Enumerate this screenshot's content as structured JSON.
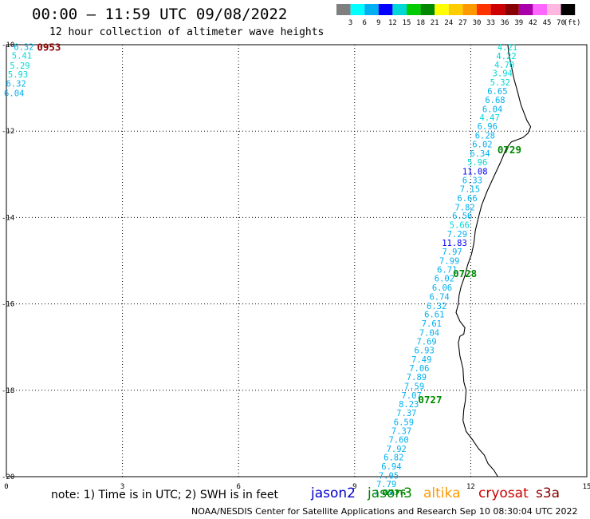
{
  "title": "00:00 – 11:59 UTC 09/08/2022",
  "subtitle": "12 hour collection of altimeter wave heights",
  "note": "note: 1) Time is in UTC; 2) SWH is in feet",
  "credit": "NOAA/NESDIS Center for Satellite Applications and Research   Sep 10 08:30:04 UTC 2022",
  "satellites": [
    {
      "name": "jason2",
      "color": "#0000cc"
    },
    {
      "name": "jason3",
      "color": "#008800"
    },
    {
      "name": "altika",
      "color": "#ff9900"
    },
    {
      "name": "cryosat",
      "color": "#cc0000"
    },
    {
      "name": "s3a",
      "color": "#8b0000"
    }
  ],
  "legend": {
    "labels": [
      "3",
      "6",
      "9",
      "12",
      "15",
      "18",
      "21",
      "24",
      "27",
      "30",
      "33",
      "36",
      "39",
      "42",
      "45",
      "70"
    ],
    "unit": "(ft)",
    "colors": [
      "#7f7f7f",
      "#00ffff",
      "#00b0f0",
      "#0000ff",
      "#00d8d8",
      "#00cc00",
      "#008800",
      "#ffff00",
      "#ffcc00",
      "#ff9900",
      "#ff3300",
      "#cc0000",
      "#880000",
      "#aa00aa",
      "#ff66ff",
      "#ffb6e0",
      "#000000"
    ]
  },
  "chart_data": {
    "type": "scatter",
    "xlim": [
      0,
      15
    ],
    "ylim": [
      -20,
      -10
    ],
    "x_ticks": [
      0,
      3,
      6,
      9,
      12,
      15
    ],
    "y_ticks": [
      -10,
      -12,
      -14,
      -16,
      -18,
      -20
    ],
    "x_tick_labels": [
      "0",
      "3",
      "6",
      "9",
      "12",
      "15"
    ],
    "y_tick_labels": [
      "-10",
      "-12",
      "-14",
      "-16",
      "-18",
      "-20"
    ],
    "grid": true,
    "series": [
      {
        "track": "west_partial",
        "points": [
          {
            "x": 0.45,
            "y": -10.05,
            "v": "6.32",
            "color": "#00b0f0"
          },
          {
            "x": 0.4,
            "y": -10.25,
            "v": "5.41",
            "color": "#00d8d8"
          },
          {
            "x": 0.35,
            "y": -10.48,
            "v": "5.29",
            "color": "#00d8d8"
          },
          {
            "x": 0.3,
            "y": -10.68,
            "v": "5.93",
            "color": "#00d8d8"
          },
          {
            "x": 0.25,
            "y": -10.9,
            "v": "6.32",
            "color": "#00b0f0"
          },
          {
            "x": 0.2,
            "y": -11.12,
            "v": "6.04",
            "color": "#00b0f0"
          }
        ]
      },
      {
        "track": "main",
        "points": [
          {
            "x": 12.95,
            "y": -10.06,
            "v": "4.21",
            "color": "#00d8d8"
          },
          {
            "x": 12.92,
            "y": -10.26,
            "v": "4.22",
            "color": "#00d8d8"
          },
          {
            "x": 12.87,
            "y": -10.46,
            "v": "4.70",
            "color": "#00d8d8"
          },
          {
            "x": 12.82,
            "y": -10.66,
            "v": "3.94",
            "color": "#00d8d8"
          },
          {
            "x": 12.76,
            "y": -10.87,
            "v": "5.32",
            "color": "#00d8d8"
          },
          {
            "x": 12.69,
            "y": -11.07,
            "v": "6.65",
            "color": "#00b0f0"
          },
          {
            "x": 12.63,
            "y": -11.28,
            "v": "6.68",
            "color": "#00b0f0"
          },
          {
            "x": 12.56,
            "y": -11.49,
            "v": "6.04",
            "color": "#00b0f0"
          },
          {
            "x": 12.49,
            "y": -11.68,
            "v": "4.47",
            "color": "#00d8d8"
          },
          {
            "x": 12.43,
            "y": -11.89,
            "v": "6.96",
            "color": "#00b0f0"
          },
          {
            "x": 12.37,
            "y": -12.1,
            "v": "6.28",
            "color": "#00b0f0"
          },
          {
            "x": 12.3,
            "y": -12.3,
            "v": "6.02",
            "color": "#00b0f0"
          },
          {
            "x": 12.24,
            "y": -12.51,
            "v": "6.34",
            "color": "#00b0f0"
          },
          {
            "x": 12.17,
            "y": -12.72,
            "v": "5.96",
            "color": "#00d8d8"
          },
          {
            "x": 12.11,
            "y": -12.93,
            "v": "11.08",
            "color": "#0000ff"
          },
          {
            "x": 12.04,
            "y": -13.13,
            "v": "6.33",
            "color": "#00b0f0"
          },
          {
            "x": 11.98,
            "y": -13.34,
            "v": "7.15",
            "color": "#00b0f0"
          },
          {
            "x": 11.91,
            "y": -13.55,
            "v": "6.66",
            "color": "#00b0f0"
          },
          {
            "x": 11.85,
            "y": -13.76,
            "v": "7.82",
            "color": "#00b0f0"
          },
          {
            "x": 11.78,
            "y": -13.96,
            "v": "6.56",
            "color": "#00b0f0"
          },
          {
            "x": 11.71,
            "y": -14.17,
            "v": "5.66",
            "color": "#00d8d8"
          },
          {
            "x": 11.65,
            "y": -14.38,
            "v": "7.29",
            "color": "#00b0f0"
          },
          {
            "x": 11.58,
            "y": -14.58,
            "v": "11.83",
            "color": "#0000ff"
          },
          {
            "x": 11.52,
            "y": -14.79,
            "v": "7.97",
            "color": "#00b0f0"
          },
          {
            "x": 11.45,
            "y": -15.0,
            "v": "7.99",
            "color": "#00b0f0"
          },
          {
            "x": 11.39,
            "y": -15.2,
            "v": "6.71",
            "color": "#00b0f0"
          },
          {
            "x": 11.32,
            "y": -15.41,
            "v": "6.02",
            "color": "#00b0f0"
          },
          {
            "x": 11.26,
            "y": -15.62,
            "v": "6.06",
            "color": "#00b0f0"
          },
          {
            "x": 11.19,
            "y": -15.83,
            "v": "6.74",
            "color": "#00b0f0"
          },
          {
            "x": 11.12,
            "y": -16.04,
            "v": "6.32",
            "color": "#00b0f0"
          },
          {
            "x": 11.06,
            "y": -16.24,
            "v": "6.61",
            "color": "#00b0f0"
          },
          {
            "x": 10.99,
            "y": -16.45,
            "v": "7.61",
            "color": "#00b0f0"
          },
          {
            "x": 10.93,
            "y": -16.66,
            "v": "7.04",
            "color": "#00b0f0"
          },
          {
            "x": 10.86,
            "y": -16.87,
            "v": "7.69",
            "color": "#00b0f0"
          },
          {
            "x": 10.8,
            "y": -17.07,
            "v": "6.93",
            "color": "#00b0f0"
          },
          {
            "x": 10.73,
            "y": -17.28,
            "v": "7.49",
            "color": "#00b0f0"
          },
          {
            "x": 10.67,
            "y": -17.49,
            "v": "7.06",
            "color": "#00b0f0"
          },
          {
            "x": 10.6,
            "y": -17.69,
            "v": "7.89",
            "color": "#00b0f0"
          },
          {
            "x": 10.54,
            "y": -17.9,
            "v": "7.59",
            "color": "#00b0f0"
          },
          {
            "x": 10.47,
            "y": -18.11,
            "v": "7.07",
            "color": "#00b0f0"
          },
          {
            "x": 10.4,
            "y": -18.32,
            "v": "8.23",
            "color": "#00b0f0"
          },
          {
            "x": 10.34,
            "y": -18.52,
            "v": "7.37",
            "color": "#00b0f0"
          },
          {
            "x": 10.27,
            "y": -18.73,
            "v": "6.59",
            "color": "#00b0f0"
          },
          {
            "x": 10.21,
            "y": -18.94,
            "v": "7.37",
            "color": "#00b0f0"
          },
          {
            "x": 10.14,
            "y": -19.14,
            "v": "7.60",
            "color": "#00b0f0"
          },
          {
            "x": 10.08,
            "y": -19.35,
            "v": "7.92",
            "color": "#00b0f0"
          },
          {
            "x": 10.01,
            "y": -19.55,
            "v": "6.82",
            "color": "#00b0f0"
          },
          {
            "x": 9.95,
            "y": -19.76,
            "v": "6.94",
            "color": "#00b0f0"
          },
          {
            "x": 9.88,
            "y": -19.97,
            "v": "7.05",
            "color": "#00b0f0"
          },
          {
            "x": 9.82,
            "y": -20.17,
            "v": "7.79",
            "color": "#00b0f0"
          },
          {
            "x": 9.75,
            "y": -20.38,
            "v": "7.48",
            "color": "#00b0f0"
          }
        ]
      }
    ],
    "time_labels": [
      {
        "x": 1.1,
        "y": -10.05,
        "text": "0953",
        "color": "#8b0000"
      },
      {
        "x": 13.0,
        "y": -12.42,
        "text": "0729",
        "color": "#008800"
      },
      {
        "x": 11.85,
        "y": -15.29,
        "text": "0728",
        "color": "#008800"
      },
      {
        "x": 10.95,
        "y": -18.21,
        "text": "0727",
        "color": "#008800"
      },
      {
        "x": 10.02,
        "y": -20.37,
        "text": "0726",
        "color": "#008800"
      }
    ],
    "coastline": [
      [
        12.96,
        -10.0
      ],
      [
        12.98,
        -10.2
      ],
      [
        13.05,
        -10.5
      ],
      [
        13.12,
        -10.8
      ],
      [
        13.2,
        -11.05
      ],
      [
        13.3,
        -11.4
      ],
      [
        13.45,
        -11.75
      ],
      [
        13.55,
        -11.9
      ],
      [
        13.48,
        -12.05
      ],
      [
        13.35,
        -12.15
      ],
      [
        13.2,
        -12.2
      ],
      [
        13.05,
        -12.25
      ],
      [
        12.92,
        -12.4
      ],
      [
        12.78,
        -12.7
      ],
      [
        12.6,
        -13.05
      ],
      [
        12.42,
        -13.4
      ],
      [
        12.28,
        -13.72
      ],
      [
        12.2,
        -14.0
      ],
      [
        12.12,
        -14.3
      ],
      [
        12.08,
        -14.6
      ],
      [
        12.02,
        -14.85
      ],
      [
        11.92,
        -15.1
      ],
      [
        11.85,
        -15.35
      ],
      [
        11.75,
        -15.6
      ],
      [
        11.7,
        -15.8
      ],
      [
        11.68,
        -16.0
      ],
      [
        11.62,
        -16.2
      ],
      [
        11.72,
        -16.4
      ],
      [
        11.85,
        -16.55
      ],
      [
        11.82,
        -16.7
      ],
      [
        11.72,
        -16.75
      ],
      [
        11.68,
        -16.9
      ],
      [
        11.72,
        -17.2
      ],
      [
        11.8,
        -17.5
      ],
      [
        11.82,
        -17.8
      ],
      [
        11.88,
        -18.0
      ],
      [
        11.86,
        -18.25
      ],
      [
        11.82,
        -18.45
      ],
      [
        11.8,
        -18.7
      ],
      [
        11.88,
        -18.95
      ],
      [
        12.05,
        -19.15
      ],
      [
        12.2,
        -19.35
      ],
      [
        12.35,
        -19.5
      ],
      [
        12.45,
        -19.7
      ],
      [
        12.6,
        -19.85
      ],
      [
        12.7,
        -20.0
      ]
    ]
  }
}
